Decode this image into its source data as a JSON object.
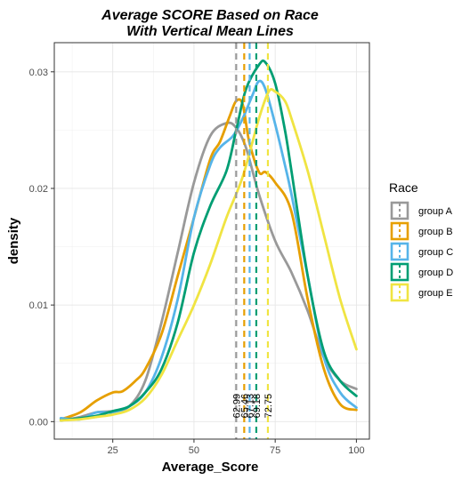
{
  "chart_data": {
    "type": "line",
    "title_line1": "Average SCORE Based on Race",
    "title_line2": "With Vertical Mean Lines",
    "xlabel": "Average_Score",
    "ylabel": "density",
    "xlim": [
      7,
      104
    ],
    "ylim": [
      -0.0015,
      0.0325
    ],
    "x_ticks": [
      25,
      50,
      75,
      100
    ],
    "y_ticks": [
      0.0,
      0.01,
      0.02,
      0.03
    ],
    "y_tick_labels": [
      "0.00",
      "0.01",
      "0.02",
      "0.03"
    ],
    "grid": true,
    "legend": {
      "title": "Race",
      "placement": "right"
    },
    "series": [
      {
        "name": "group A",
        "color": "#999999",
        "mean": 62.99,
        "mean_label": "62.99",
        "x": [
          9,
          15,
          20,
          25,
          30,
          35,
          40,
          45,
          50,
          55,
          60,
          63,
          66,
          70,
          75,
          80,
          85,
          90,
          95,
          100
        ],
        "y": [
          0.0001,
          0.0004,
          0.0008,
          0.0009,
          0.0013,
          0.0035,
          0.0085,
          0.0145,
          0.0205,
          0.0245,
          0.0256,
          0.0252,
          0.0235,
          0.0195,
          0.0155,
          0.0128,
          0.0095,
          0.0055,
          0.0035,
          0.0028
        ]
      },
      {
        "name": "group B",
        "color": "#E69F00",
        "mean": 65.46,
        "mean_label": "65.46",
        "x": [
          9,
          15,
          20,
          25,
          28,
          32,
          35,
          40,
          45,
          50,
          55,
          58,
          61,
          63,
          65,
          67,
          70,
          72,
          75,
          80,
          85,
          90,
          95,
          100
        ],
        "y": [
          0.0002,
          0.0008,
          0.0018,
          0.0025,
          0.0026,
          0.0035,
          0.0045,
          0.0075,
          0.0125,
          0.0175,
          0.0225,
          0.024,
          0.0262,
          0.0275,
          0.0272,
          0.024,
          0.0214,
          0.0214,
          0.0205,
          0.018,
          0.0105,
          0.0045,
          0.0015,
          0.001
        ]
      },
      {
        "name": "group C",
        "color": "#56B4E9",
        "mean": 67.13,
        "mean_label": "67.13",
        "x": [
          9,
          15,
          20,
          25,
          30,
          35,
          40,
          45,
          50,
          55,
          58,
          62,
          65,
          68,
          70,
          72,
          75,
          78,
          80,
          85,
          90,
          95,
          100
        ],
        "y": [
          0.0003,
          0.0002,
          0.0008,
          0.0008,
          0.0013,
          0.0025,
          0.0055,
          0.0105,
          0.0175,
          0.022,
          0.0235,
          0.0245,
          0.026,
          0.028,
          0.0292,
          0.0285,
          0.0255,
          0.022,
          0.0195,
          0.0125,
          0.0055,
          0.0025,
          0.0012
        ]
      },
      {
        "name": "group D",
        "color": "#009E73",
        "mean": 69.18,
        "mean_label": "69.18",
        "x": [
          9,
          15,
          20,
          25,
          30,
          35,
          40,
          45,
          50,
          55,
          60,
          63,
          66,
          70,
          72,
          75,
          78,
          80,
          85,
          90,
          95,
          100
        ],
        "y": [
          0.0001,
          0.0003,
          0.0005,
          0.0009,
          0.0013,
          0.0025,
          0.0045,
          0.0085,
          0.0145,
          0.0185,
          0.0215,
          0.025,
          0.0285,
          0.0306,
          0.0308,
          0.029,
          0.025,
          0.0215,
          0.0125,
          0.006,
          0.0035,
          0.0022
        ]
      },
      {
        "name": "group E",
        "color": "#F0E442",
        "mean": 72.75,
        "mean_label": "72.75",
        "x": [
          9,
          15,
          20,
          25,
          30,
          35,
          40,
          45,
          50,
          55,
          60,
          65,
          70,
          73,
          75,
          78,
          80,
          85,
          90,
          95,
          100
        ],
        "y": [
          0.0001,
          0.0002,
          0.0004,
          0.0006,
          0.001,
          0.002,
          0.004,
          0.007,
          0.01,
          0.0135,
          0.0175,
          0.021,
          0.026,
          0.0283,
          0.0283,
          0.0275,
          0.026,
          0.0215,
          0.016,
          0.0105,
          0.0062
        ]
      }
    ]
  }
}
